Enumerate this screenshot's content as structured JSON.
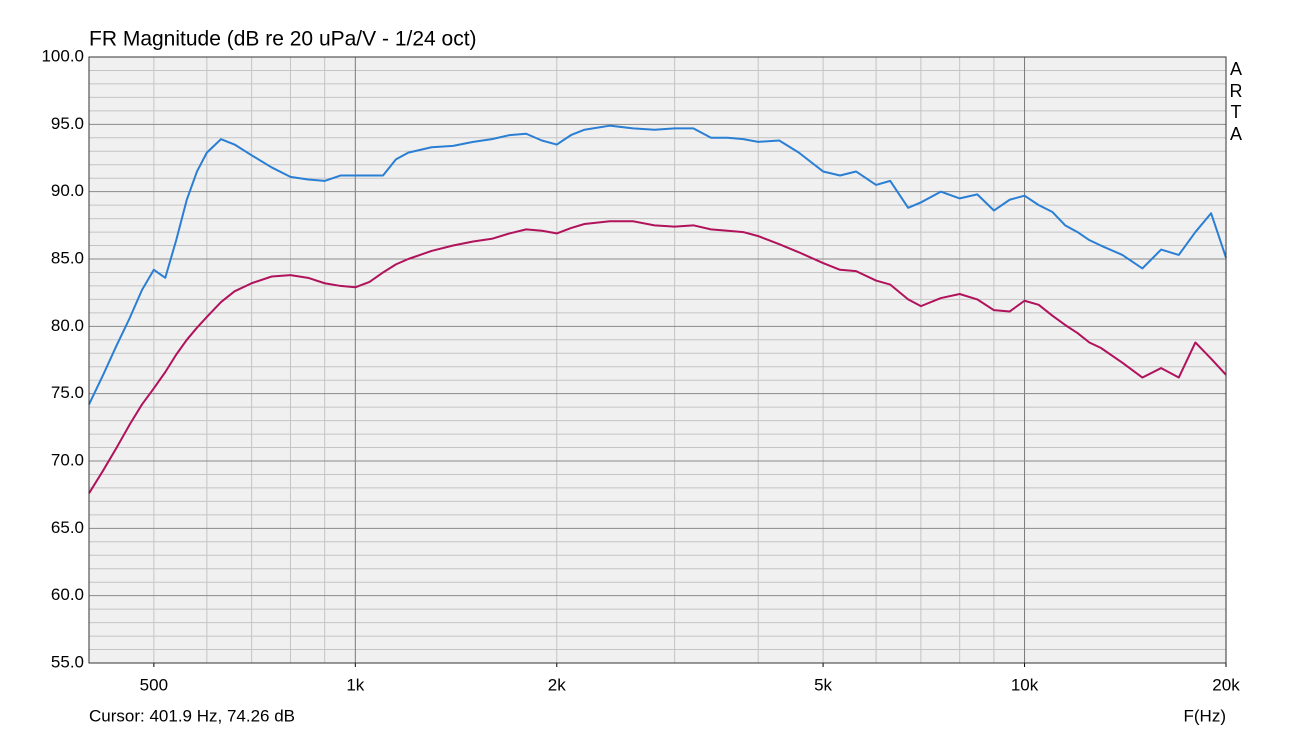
{
  "chart_data": {
    "type": "line",
    "title": "FR Magnitude (dB re 20 uPa/V - 1/24 oct)",
    "watermark": "ARTA",
    "status": "Cursor: 401.9 Hz, 74.26 dB",
    "xlabel": "F(Hz)",
    "xscale": "log",
    "grid": true,
    "xlim": [
      400,
      20000
    ],
    "ylim": [
      55,
      100
    ],
    "xticks": [
      500,
      {
        "value": 1000,
        "label": "1k"
      },
      {
        "value": 2000,
        "label": "2k"
      },
      {
        "value": 5000,
        "label": "5k"
      },
      {
        "value": 10000,
        "label": "10k"
      },
      {
        "value": 20000,
        "label": "20k"
      }
    ],
    "xgrid": [
      400,
      500,
      600,
      700,
      800,
      900,
      1000,
      2000,
      3000,
      4000,
      5000,
      6000,
      7000,
      8000,
      9000,
      10000,
      20000
    ],
    "yticks": [
      {
        "value": 55,
        "label": "55.0"
      },
      {
        "value": 60,
        "label": "60.0"
      },
      {
        "value": 65,
        "label": "65.0"
      },
      {
        "value": 70,
        "label": "70.0"
      },
      {
        "value": 75,
        "label": "75.0"
      },
      {
        "value": 80,
        "label": "80.0"
      },
      {
        "value": 85,
        "label": "85.0"
      },
      {
        "value": 90,
        "label": "90.0"
      },
      {
        "value": 95,
        "label": "95.0"
      },
      {
        "value": 100,
        "label": "100.0"
      }
    ],
    "ygrid": [
      56,
      57,
      58,
      59,
      61,
      62,
      63,
      64,
      66,
      67,
      68,
      69,
      71,
      72,
      73,
      74,
      76,
      77,
      78,
      79,
      81,
      82,
      83,
      84,
      86,
      87,
      88,
      89,
      91,
      92,
      93,
      94,
      96,
      97,
      98,
      99
    ],
    "x": [
      400,
      420,
      440,
      460,
      480,
      500,
      520,
      540,
      560,
      580,
      600,
      630,
      660,
      700,
      750,
      800,
      850,
      900,
      950,
      1000,
      1050,
      1100,
      1150,
      1200,
      1300,
      1400,
      1500,
      1600,
      1700,
      1800,
      1900,
      2000,
      2100,
      2200,
      2400,
      2600,
      2800,
      3000,
      3200,
      3400,
      3600,
      3800,
      4000,
      4300,
      4600,
      5000,
      5300,
      5600,
      6000,
      6300,
      6700,
      7000,
      7500,
      8000,
      8500,
      9000,
      9500,
      10000,
      10500,
      11000,
      11500,
      12000,
      12500,
      13000,
      14000,
      15000,
      16000,
      17000,
      18000,
      19000,
      20000
    ],
    "series": [
      {
        "color": "#2a7fd4",
        "values": [
          74.2,
          76.4,
          78.6,
          80.6,
          82.7,
          84.2,
          83.6,
          86.4,
          89.4,
          91.5,
          92.9,
          93.9,
          93.5,
          92.7,
          91.8,
          91.1,
          90.9,
          90.8,
          91.2,
          91.2,
          91.2,
          91.2,
          92.4,
          92.9,
          93.3,
          93.4,
          93.7,
          93.9,
          94.2,
          94.3,
          93.8,
          93.5,
          94.2,
          94.6,
          94.9,
          94.7,
          94.6,
          94.7,
          94.7,
          94.0,
          94.0,
          93.9,
          93.7,
          93.8,
          92.9,
          91.5,
          91.2,
          91.5,
          90.5,
          90.8,
          88.8,
          89.2,
          90.0,
          89.5,
          89.8,
          88.6,
          89.4,
          89.7,
          89.0,
          88.5,
          87.5,
          87.0,
          86.4,
          86.0,
          85.3,
          84.3,
          85.7,
          85.3,
          87.0,
          88.4,
          85.1
        ]
      },
      {
        "color": "#b0125b",
        "values": [
          67.6,
          69.3,
          71.0,
          72.7,
          74.2,
          75.4,
          76.6,
          77.9,
          79.0,
          79.9,
          80.7,
          81.8,
          82.6,
          83.2,
          83.7,
          83.8,
          83.6,
          83.2,
          83.0,
          82.9,
          83.3,
          84.0,
          84.6,
          85.0,
          85.6,
          86.0,
          86.3,
          86.5,
          86.9,
          87.2,
          87.1,
          86.9,
          87.3,
          87.6,
          87.8,
          87.8,
          87.5,
          87.4,
          87.5,
          87.2,
          87.1,
          87.0,
          86.7,
          86.1,
          85.5,
          84.7,
          84.2,
          84.1,
          83.4,
          83.1,
          82.0,
          81.5,
          82.1,
          82.4,
          82.0,
          81.2,
          81.1,
          81.9,
          81.6,
          80.8,
          80.1,
          79.5,
          78.8,
          78.4,
          77.3,
          76.2,
          76.9,
          76.2,
          78.8,
          77.6,
          76.4
        ]
      }
    ]
  }
}
